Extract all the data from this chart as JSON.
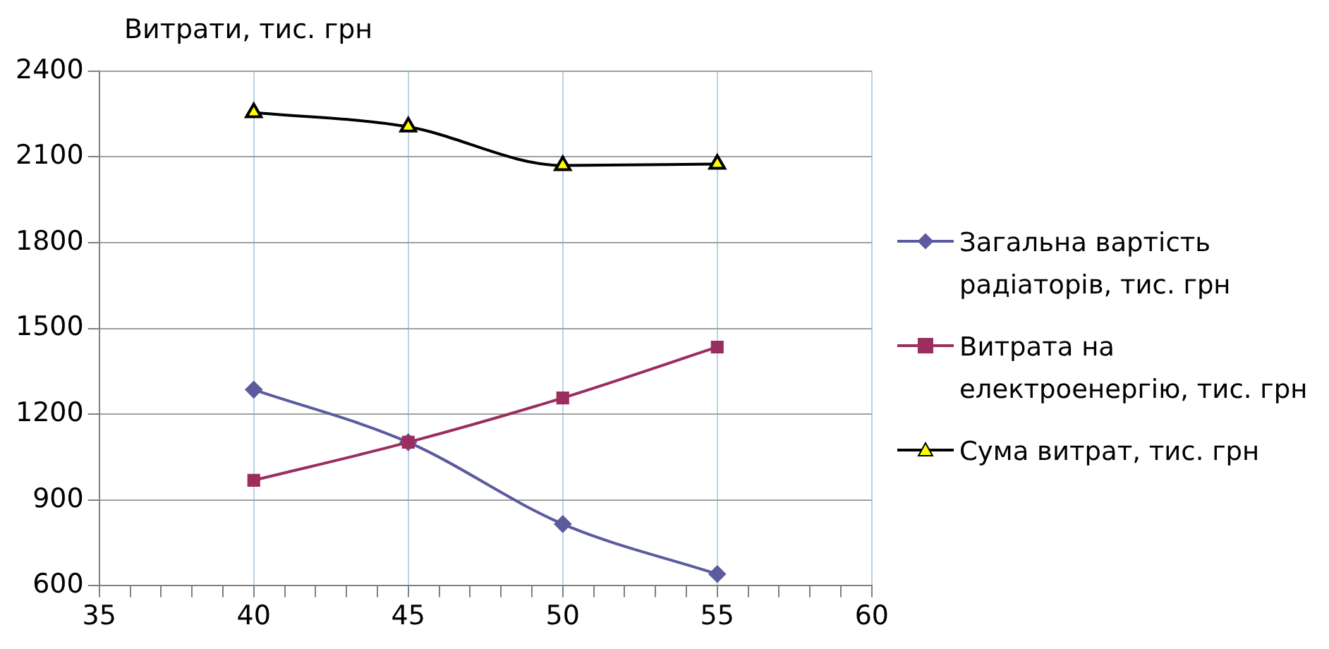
{
  "chart_data": {
    "type": "line",
    "ylabel": "Витрати, тис. грн",
    "x": [
      40,
      45,
      50,
      55
    ],
    "series": [
      {
        "name": "Загальна вартість радіаторів, тис. грн",
        "color": "#5b5b9e",
        "marker": "diamond",
        "values": [
          1286,
          1102,
          816,
          641
        ]
      },
      {
        "name": "Витрата на електроенергію, тис. грн",
        "color": "#9b2d5f",
        "marker": "square",
        "values": [
          969,
          1102,
          1257,
          1435
        ]
      },
      {
        "name": "Сума витрат, тис. грн",
        "color": "#000000",
        "marker": "triangle",
        "values": [
          2255,
          2205,
          2070,
          2075
        ]
      }
    ],
    "xlim": [
      35,
      60
    ],
    "xticks": [
      35,
      {
        "value": 36,
        "label": null
      },
      {
        "value": 37,
        "label": null
      },
      {
        "value": 38,
        "label": null
      },
      {
        "value": 39,
        "label": null
      },
      40,
      {
        "value": 41,
        "label": null
      },
      {
        "value": 42,
        "label": null
      },
      {
        "value": 43,
        "label": null
      },
      {
        "value": 44,
        "label": null
      },
      45,
      {
        "value": 46,
        "label": null
      },
      {
        "value": 47,
        "label": null
      },
      {
        "value": 48,
        "label": null
      },
      {
        "value": 49,
        "label": null
      },
      50,
      {
        "value": 51,
        "label": null
      },
      {
        "value": 52,
        "label": null
      },
      {
        "value": 53,
        "label": null
      },
      {
        "value": 54,
        "label": null
      },
      55,
      {
        "value": 56,
        "label": null
      },
      {
        "value": 57,
        "label": null
      },
      {
        "value": 58,
        "label": null
      },
      {
        "value": 59,
        "label": null
      },
      60
    ],
    "ylim": [
      600,
      2400
    ],
    "yticks": [
      600,
      900,
      1200,
      1500,
      1800,
      2100,
      2400
    ],
    "grid": true,
    "legend": "right",
    "line_style": "solid"
  }
}
